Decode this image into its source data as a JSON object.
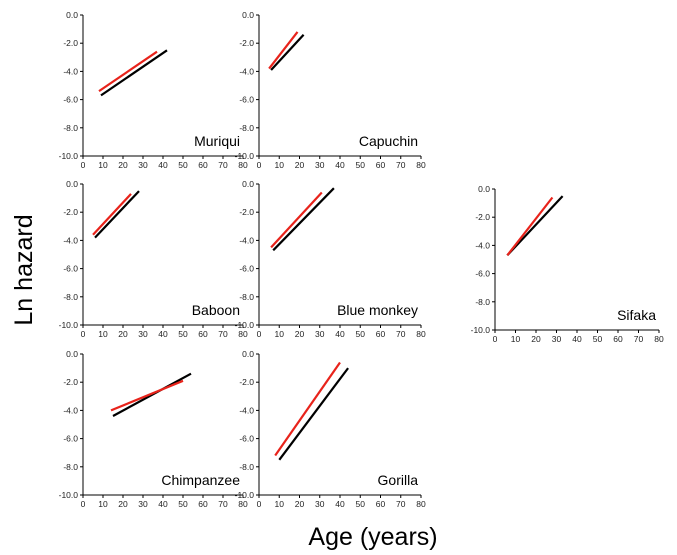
{
  "figure": {
    "ylabel": "Ln hazard",
    "xlabel": "Age (years)"
  },
  "colors": {
    "series_a": "#e8231b",
    "series_b": "#000000",
    "axis": "#000000"
  },
  "chart_data": [
    {
      "type": "line",
      "title": "Muriqui",
      "xlim": [
        0,
        80
      ],
      "ylim": [
        -10,
        0
      ],
      "xticks": [
        "0",
        "10",
        "20",
        "30",
        "40",
        "50",
        "60",
        "70",
        "80"
      ],
      "yticks": [
        "0.0",
        "-2.0",
        "-4.0",
        "-6.0",
        "-8.0",
        "-10.0"
      ],
      "series": [
        {
          "color": "#e8231b",
          "x": [
            8,
            37
          ],
          "y": [
            -5.4,
            -2.6
          ]
        },
        {
          "color": "#000000",
          "x": [
            9,
            42
          ],
          "y": [
            -5.7,
            -2.5
          ]
        }
      ]
    },
    {
      "type": "line",
      "title": "Capuchin",
      "xlim": [
        0,
        80
      ],
      "ylim": [
        -10,
        0
      ],
      "xticks": [
        "0",
        "10",
        "20",
        "30",
        "40",
        "50",
        "60",
        "70",
        "80"
      ],
      "yticks": [
        "0.0",
        "-2.0",
        "-4.0",
        "-6.0",
        "-8.0",
        "-10.0"
      ],
      "series": [
        {
          "color": "#e8231b",
          "x": [
            5,
            19
          ],
          "y": [
            -3.8,
            -1.2
          ]
        },
        {
          "color": "#000000",
          "x": [
            6,
            22
          ],
          "y": [
            -3.9,
            -1.4
          ]
        }
      ]
    },
    {
      "type": "line",
      "title": "Baboon",
      "xlim": [
        0,
        80
      ],
      "ylim": [
        -10,
        0
      ],
      "xticks": [
        "0",
        "10",
        "20",
        "30",
        "40",
        "50",
        "60",
        "70",
        "80"
      ],
      "yticks": [
        "0.0",
        "-2.0",
        "-4.0",
        "-6.0",
        "-8.0",
        "-10.0"
      ],
      "series": [
        {
          "color": "#e8231b",
          "x": [
            5,
            24
          ],
          "y": [
            -3.6,
            -0.7
          ]
        },
        {
          "color": "#000000",
          "x": [
            6,
            28
          ],
          "y": [
            -3.8,
            -0.5
          ]
        }
      ]
    },
    {
      "type": "line",
      "title": "Blue monkey",
      "xlim": [
        0,
        80
      ],
      "ylim": [
        -10,
        0
      ],
      "xticks": [
        "0",
        "10",
        "20",
        "30",
        "40",
        "50",
        "60",
        "70",
        "80"
      ],
      "yticks": [
        "0.0",
        "-2.0",
        "-4.0",
        "-6.0",
        "-8.0",
        "-10.0"
      ],
      "series": [
        {
          "color": "#e8231b",
          "x": [
            6,
            31
          ],
          "y": [
            -4.5,
            -0.6
          ]
        },
        {
          "color": "#000000",
          "x": [
            7,
            37
          ],
          "y": [
            -4.7,
            -0.3
          ]
        }
      ]
    },
    {
      "type": "line",
      "title": "Sifaka",
      "xlim": [
        0,
        80
      ],
      "ylim": [
        -10,
        0
      ],
      "xticks": [
        "0",
        "10",
        "20",
        "30",
        "40",
        "50",
        "60",
        "70",
        "80"
      ],
      "yticks": [
        "0.0",
        "-2.0",
        "-4.0",
        "-6.0",
        "-8.0",
        "-10.0"
      ],
      "series": [
        {
          "color": "#e8231b",
          "x": [
            6,
            28
          ],
          "y": [
            -4.7,
            -0.6
          ]
        },
        {
          "color": "#000000",
          "x": [
            6,
            33
          ],
          "y": [
            -4.7,
            -0.5
          ]
        }
      ]
    },
    {
      "type": "line",
      "title": "Chimpanzee",
      "xlim": [
        0,
        80
      ],
      "ylim": [
        -10,
        0
      ],
      "xticks": [
        "0",
        "10",
        "20",
        "30",
        "40",
        "50",
        "60",
        "70",
        "80"
      ],
      "yticks": [
        "0.0",
        "-2.0",
        "-4.0",
        "-6.0",
        "-8.0",
        "-10.0"
      ],
      "series": [
        {
          "color": "#e8231b",
          "x": [
            14,
            50
          ],
          "y": [
            -4.0,
            -1.9
          ]
        },
        {
          "color": "#000000",
          "x": [
            15,
            54
          ],
          "y": [
            -4.4,
            -1.4
          ]
        }
      ]
    },
    {
      "type": "line",
      "title": "Gorilla",
      "xlim": [
        0,
        80
      ],
      "ylim": [
        -10,
        0
      ],
      "xticks": [
        "0",
        "10",
        "20",
        "30",
        "40",
        "50",
        "60",
        "70",
        "80"
      ],
      "yticks": [
        "0.0",
        "-2.0",
        "-4.0",
        "-6.0",
        "-8.0",
        "-10.0"
      ],
      "series": [
        {
          "color": "#e8231b",
          "x": [
            8,
            40
          ],
          "y": [
            -7.2,
            -0.6
          ]
        },
        {
          "color": "#000000",
          "x": [
            10,
            44
          ],
          "y": [
            -7.5,
            -1.0
          ]
        }
      ]
    }
  ]
}
